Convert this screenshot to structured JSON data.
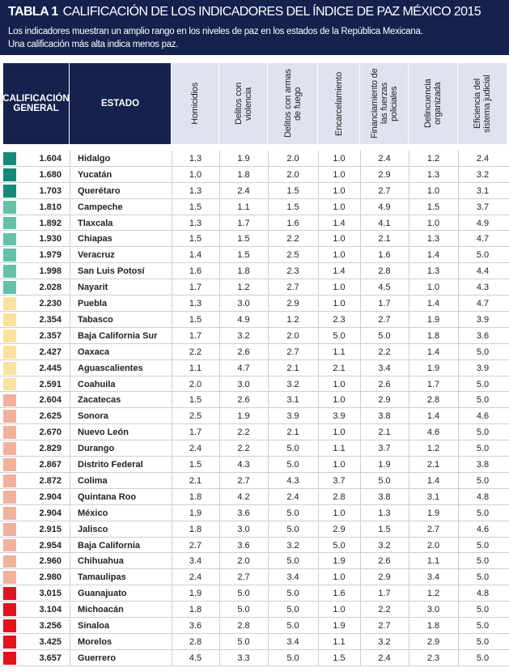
{
  "header": {
    "label": "TABLA 1",
    "title": "CALIFICACIÓN DE LOS INDICADORES DEL ÍNDICE DE PAZ MÉXICO 2015",
    "subtitle": [
      "Los indicadores muestran un amplio rango en los niveles de paz en los estados de la República Mexicana.",
      "Una calificación más alta indica menos paz."
    ]
  },
  "table": {
    "columns": [
      "CALIFICACIÓN GENERAL",
      "ESTADO",
      "Homicidios",
      "Delitos con violencia",
      "Delitos con armas de fuego",
      "Encarcelamiento",
      "Financiamiento de las fuerzas policiales",
      "Delincuencia organizada",
      "Eficiencia del sistema judicial"
    ],
    "rows": [
      {
        "color": "#148a78",
        "score": "1.604",
        "state": "Hidalgo",
        "values": [
          "1.3",
          "1.9",
          "2.0",
          "1.0",
          "2.4",
          "1.2",
          "2.4"
        ]
      },
      {
        "color": "#148a78",
        "score": "1.680",
        "state": "Yucatán",
        "values": [
          "1.0",
          "1.8",
          "2.0",
          "1.0",
          "2.9",
          "1.3",
          "3.2"
        ]
      },
      {
        "color": "#148a78",
        "score": "1.703",
        "state": "Querétaro",
        "values": [
          "1.3",
          "2.4",
          "1.5",
          "1.0",
          "2.7",
          "1.0",
          "3.1"
        ]
      },
      {
        "color": "#62c2a9",
        "score": "1.810",
        "state": "Campeche",
        "values": [
          "1.5",
          "1.1",
          "1.5",
          "1.0",
          "4.9",
          "1.5",
          "3.7"
        ]
      },
      {
        "color": "#62c2a9",
        "score": "1.892",
        "state": "Tlaxcala",
        "values": [
          "1.3",
          "1.7",
          "1.6",
          "1.4",
          "4.1",
          "1.0",
          "4.9"
        ]
      },
      {
        "color": "#62c2a9",
        "score": "1.930",
        "state": "Chiapas",
        "values": [
          "1.5",
          "1.5",
          "2.2",
          "1.0",
          "2.1",
          "1.3",
          "4.7"
        ]
      },
      {
        "color": "#62c2a9",
        "score": "1.979",
        "state": "Veracruz",
        "values": [
          "1.4",
          "1.5",
          "2.5",
          "1.0",
          "1.6",
          "1.4",
          "5.0"
        ]
      },
      {
        "color": "#62c2a9",
        "score": "1.998",
        "state": "San Luis Potosí",
        "values": [
          "1.6",
          "1.8",
          "2.3",
          "1.4",
          "2.8",
          "1.3",
          "4.4"
        ]
      },
      {
        "color": "#62c2a9",
        "score": "2.028",
        "state": "Nayarit",
        "values": [
          "1.7",
          "1.2",
          "2.7",
          "1.0",
          "4.5",
          "1.0",
          "4.3"
        ]
      },
      {
        "color": "#fbe29c",
        "score": "2.230",
        "state": "Puebla",
        "values": [
          "1.3",
          "3.0",
          "2.9",
          "1.0",
          "1.7",
          "1.4",
          "4.7"
        ]
      },
      {
        "color": "#fbe29c",
        "score": "2.354",
        "state": "Tabasco",
        "values": [
          "1.5",
          "4.9",
          "1.2",
          "2.3",
          "2.7",
          "1.9",
          "3.9"
        ]
      },
      {
        "color": "#fbe29c",
        "score": "2.357",
        "state": "Baja California Sur",
        "values": [
          "1.7",
          "3.2",
          "2.0",
          "5.0",
          "5.0",
          "1.8",
          "3.6"
        ]
      },
      {
        "color": "#fbe29c",
        "score": "2.427",
        "state": "Oaxaca",
        "values": [
          "2.2",
          "2.6",
          "2.7",
          "1.1",
          "2.2",
          "1.4",
          "5.0"
        ]
      },
      {
        "color": "#fbe29c",
        "score": "2.445",
        "state": "Aguascalientes",
        "values": [
          "1.1",
          "4.7",
          "2.1",
          "2.1",
          "3.4",
          "1.9",
          "3.9"
        ]
      },
      {
        "color": "#fbe29c",
        "score": "2.591",
        "state": "Coahuila",
        "values": [
          "2.0",
          "3.0",
          "3.2",
          "1.0",
          "2.6",
          "1.7",
          "5.0"
        ]
      },
      {
        "color": "#f3b09a",
        "score": "2.604",
        "state": "Zacatecas",
        "values": [
          "1.5",
          "2.6",
          "3.1",
          "1.0",
          "2.9",
          "2.8",
          "5.0"
        ]
      },
      {
        "color": "#f3b09a",
        "score": "2.625",
        "state": "Sonora",
        "values": [
          "2.5",
          "1.9",
          "3.9",
          "3.9",
          "3.8",
          "1.4",
          "4.6"
        ]
      },
      {
        "color": "#f3b09a",
        "score": "2.670",
        "state": "Nuevo León",
        "values": [
          "1.7",
          "2.2",
          "2.1",
          "1.0",
          "2.1",
          "4.6",
          "5.0"
        ]
      },
      {
        "color": "#f3b09a",
        "score": "2.829",
        "state": "Durango",
        "values": [
          "2.4",
          "2.2",
          "5.0",
          "1.1",
          "3.7",
          "1.2",
          "5.0"
        ]
      },
      {
        "color": "#f3b09a",
        "score": "2.867",
        "state": "Distrito Federal",
        "values": [
          "1.5",
          "4.3",
          "5.0",
          "1.0",
          "1.9",
          "2.1",
          "3.8"
        ]
      },
      {
        "color": "#f3b09a",
        "score": "2.872",
        "state": "Colima",
        "values": [
          "2.1",
          "2.7",
          "4.3",
          "3.7",
          "5.0",
          "1.4",
          "5.0"
        ]
      },
      {
        "color": "#f3b09a",
        "score": "2.904",
        "state": "Quintana Roo",
        "values": [
          "1.8",
          "4.2",
          "2.4",
          "2.8",
          "3.8",
          "3.1",
          "4.8"
        ]
      },
      {
        "color": "#f3b09a",
        "score": "2.904",
        "state": "México",
        "values": [
          "1.9",
          "3.6",
          "5.0",
          "1.0",
          "1.3",
          "1.9",
          "5.0"
        ]
      },
      {
        "color": "#f3b09a",
        "score": "2.915",
        "state": "Jalisco",
        "values": [
          "1.8",
          "3.0",
          "5.0",
          "2.9",
          "1.5",
          "2.7",
          "4.6"
        ]
      },
      {
        "color": "#f3b09a",
        "score": "2.954",
        "state": "Baja California",
        "values": [
          "2.7",
          "3.6",
          "3.2",
          "5.0",
          "3.2",
          "2.0",
          "5.0"
        ]
      },
      {
        "color": "#f3b09a",
        "score": "2.960",
        "state": "Chihuahua",
        "values": [
          "3.4",
          "2.0",
          "5.0",
          "1.9",
          "2.6",
          "1.1",
          "5.0"
        ]
      },
      {
        "color": "#f3b09a",
        "score": "2.980",
        "state": "Tamaulipas",
        "values": [
          "2.4",
          "2.7",
          "3.4",
          "1.0",
          "2.9",
          "3.4",
          "5.0"
        ]
      },
      {
        "color": "#e0141c",
        "score": "3.015",
        "state": "Guanajuato",
        "values": [
          "1.9",
          "5.0",
          "5.0",
          "1.6",
          "1.7",
          "1.2",
          "4.8"
        ]
      },
      {
        "color": "#e0141c",
        "score": "3.104",
        "state": "Michoacán",
        "values": [
          "1.8",
          "5.0",
          "5.0",
          "1.0",
          "2.2",
          "3.0",
          "5.0"
        ]
      },
      {
        "color": "#e0141c",
        "score": "3.256",
        "state": "Sinaloa",
        "values": [
          "3.6",
          "2.8",
          "5.0",
          "1.9",
          "2.7",
          "1.8",
          "5.0"
        ]
      },
      {
        "color": "#e0141c",
        "score": "3.425",
        "state": "Morelos",
        "values": [
          "2.8",
          "5.0",
          "3.4",
          "1.1",
          "3.2",
          "2.9",
          "5.0"
        ]
      },
      {
        "color": "#e0141c",
        "score": "3.657",
        "state": "Guerrero",
        "values": [
          "4.5",
          "3.3",
          "5.0",
          "1.5",
          "2.4",
          "2.3",
          "5.0"
        ]
      }
    ]
  }
}
